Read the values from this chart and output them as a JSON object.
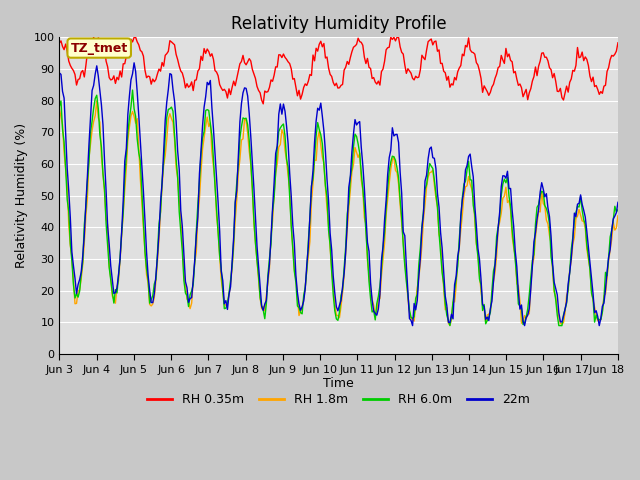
{
  "title": "Relativity Humidity Profile",
  "xlabel": "Time",
  "ylabel": "Relativity Humidity (%)",
  "ylim": [
    0,
    100
  ],
  "yticks": [
    0,
    10,
    20,
    30,
    40,
    50,
    60,
    70,
    80,
    90,
    100
  ],
  "xtick_labels": [
    "Jun 3",
    "Jun 4",
    "Jun 5",
    "Jun 6",
    "Jun 7",
    "Jun 8",
    "Jun 9",
    "Jun 10",
    "Jun 11",
    "Jun 12",
    "Jun 13",
    "Jun 14",
    "Jun 15",
    "Jun 16",
    "Jun 17Jun",
    "18"
  ],
  "colors": {
    "RH 0.35m": "#ff0000",
    "RH 1.8m": "#ffa500",
    "RH 6.0m": "#00cc00",
    "22m": "#0000cc"
  },
  "annotation_text": "TZ_tmet",
  "annotation_bg": "#ffffcc",
  "annotation_border": "#bbaa00",
  "fig_facecolor": "#c8c8c8",
  "ax_facecolor": "#e0e0e0",
  "grid_color": "#ffffff",
  "title_fontsize": 12,
  "label_fontsize": 9,
  "tick_fontsize": 8
}
